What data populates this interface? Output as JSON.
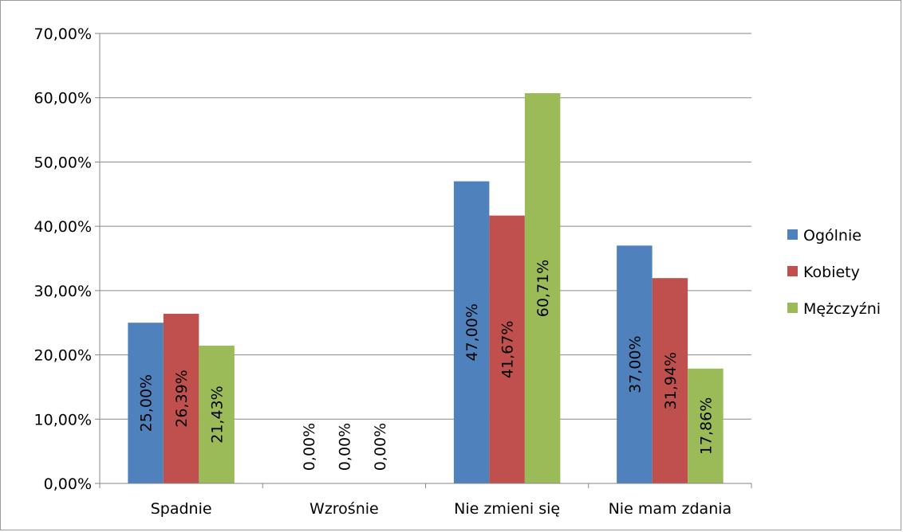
{
  "chart_data": {
    "type": "bar",
    "title": "",
    "xlabel": "",
    "ylabel": "",
    "categories": [
      "Spadnie",
      "Wzrośnie",
      "Nie zmieni się",
      "Nie mam zdania"
    ],
    "series": [
      {
        "name": "Ogólnie",
        "color": "#4F81BD",
        "values": [
          25.0,
          0.0,
          47.0,
          37.0
        ],
        "labels": [
          "25,00%",
          "0,00%",
          "47,00%",
          "37,00%"
        ]
      },
      {
        "name": "Kobiety",
        "color": "#C0504D",
        "values": [
          26.39,
          0.0,
          41.67,
          31.94
        ],
        "labels": [
          "26,39%",
          "0,00%",
          "41,67%",
          "31,94%"
        ]
      },
      {
        "name": "Mężczyźni",
        "color": "#9BBB59",
        "values": [
          21.43,
          0.0,
          60.71,
          17.86
        ],
        "labels": [
          "21,43%",
          "0,00%",
          "60,71%",
          "17,86%"
        ]
      }
    ],
    "ylim": [
      0,
      70
    ],
    "yticks": [
      0,
      10,
      20,
      30,
      40,
      50,
      60,
      70
    ],
    "ytick_labels": [
      "0,00%",
      "10,00%",
      "20,00%",
      "30,00%",
      "40,00%",
      "50,00%",
      "60,00%",
      "70,00%"
    ],
    "grid": true,
    "legend_position": "right",
    "gridline_color": "#878787"
  }
}
